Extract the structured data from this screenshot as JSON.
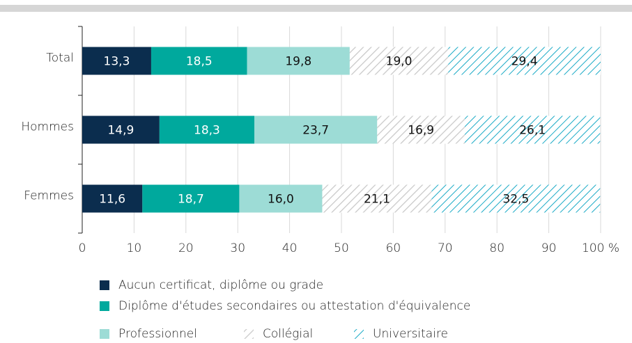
{
  "chart_data": {
    "type": "stacked-barh",
    "categories": [
      "Total",
      "Hommes",
      "Femmes"
    ],
    "series": [
      {
        "name": "Aucun certificat, diplôme ou grade",
        "color": "#0b2d4e",
        "label_color": "#ffffff",
        "values": [
          13.3,
          14.9,
          11.6
        ],
        "value_labels": [
          "13,3",
          "14,9",
          "11,6"
        ]
      },
      {
        "name": "Diplôme d'études secondaires ou attestation d'équivalence",
        "color": "#00a99d",
        "label_color": "#ffffff",
        "values": [
          18.5,
          18.3,
          18.7
        ],
        "value_labels": [
          "18,5",
          "18,3",
          "18,7"
        ]
      },
      {
        "name": "Professionnel",
        "color": "#9ddcd6",
        "label_color": "#111111",
        "values": [
          19.8,
          23.7,
          16.0
        ],
        "value_labels": [
          "19,8",
          "23,7",
          "16,0"
        ]
      },
      {
        "name": "Collégial",
        "color": "#c8c8c8",
        "pattern": "hatch",
        "label_color": "#111111",
        "values": [
          19.0,
          16.9,
          21.1
        ],
        "value_labels": [
          "19,0",
          "16,9",
          "21,1"
        ]
      },
      {
        "name": "Universitaire",
        "color": "#1aaac6",
        "pattern": "hatch",
        "label_color": "#111111",
        "values": [
          29.4,
          26.1,
          32.5
        ],
        "value_labels": [
          "29,4",
          "26,1",
          "32,5"
        ]
      }
    ],
    "xlim": [
      0,
      100
    ],
    "xticks": [
      0,
      10,
      20,
      30,
      40,
      50,
      60,
      70,
      80,
      90,
      {
        "value": 100,
        "label": "100 %"
      }
    ],
    "grid": true
  }
}
